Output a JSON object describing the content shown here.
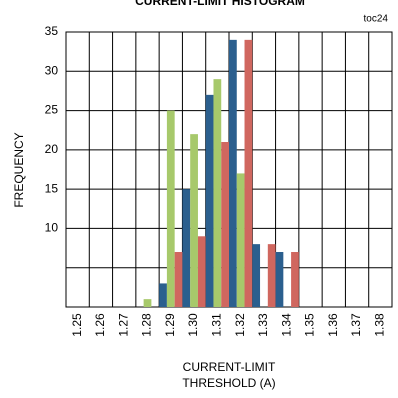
{
  "chart_data": {
    "type": "bar",
    "title": "CURRENT-LIMIT HISTOGRAM",
    "annotation": "toc24",
    "ylabel": "FREQUENCY",
    "xlabel": [
      "CURRENT-LIMIT",
      "THRESHOLD (A)"
    ],
    "categories": [
      "1.25",
      "1.26",
      "1.27",
      "1.28",
      "1.29",
      "1.30",
      "1.31",
      "1.32",
      "1.33",
      "1.34",
      "1.35",
      "1.36",
      "1.37",
      "1.38"
    ],
    "series": [
      {
        "color": "#2b5f8e",
        "values": [
          0,
          0,
          0,
          0,
          3,
          15,
          27,
          34,
          8,
          7,
          0,
          0,
          0,
          0
        ]
      },
      {
        "color": "#a7c96b",
        "values": [
          0,
          0,
          0,
          1,
          25,
          22,
          29,
          17,
          0,
          0,
          0,
          0,
          0,
          0
        ]
      },
      {
        "color": "#d0675f",
        "values": [
          0,
          0,
          0,
          0,
          7,
          9,
          21,
          34,
          8,
          7,
          0,
          0,
          0,
          0
        ]
      }
    ],
    "ylim": [
      0,
      35
    ],
    "yticks": [
      10,
      15,
      20,
      25,
      30,
      35
    ],
    "yminorticks": [
      5
    ],
    "grid": true
  }
}
